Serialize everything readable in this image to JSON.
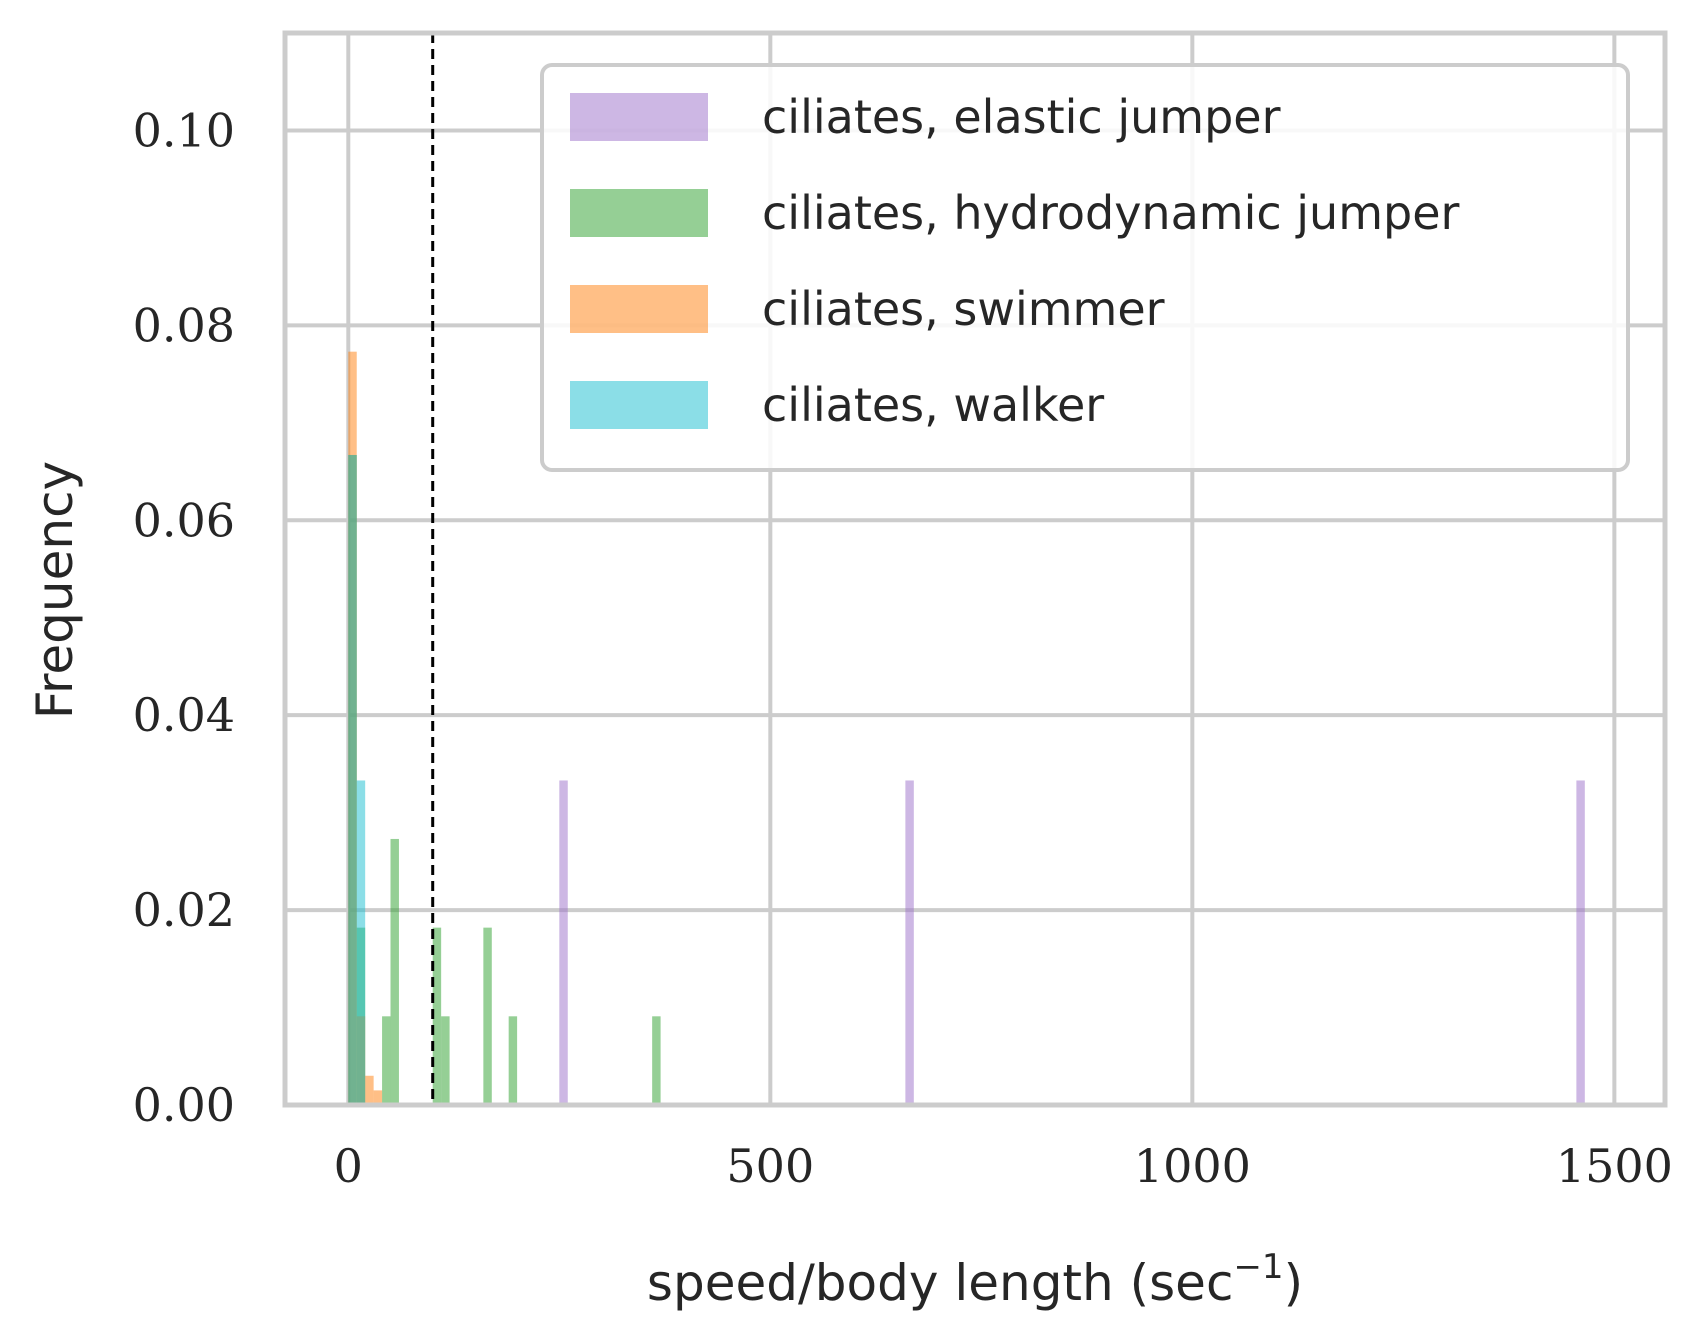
{
  "chart_data": {
    "type": "bar",
    "subtype": "histogram",
    "xlabel_main": "speed/body length (sec",
    "xlabel_sup": "−1",
    "xlabel_close": ")",
    "ylabel": "Frequency",
    "xlim": [
      -75,
      1560
    ],
    "ylim": [
      0,
      0.11
    ],
    "x_ticks": [
      0,
      500,
      1000,
      1500
    ],
    "x_tick_labels": [
      "0",
      "500",
      "1000",
      "1500"
    ],
    "y_ticks": [
      0.0,
      0.02,
      0.04,
      0.06,
      0.08,
      0.1
    ],
    "y_tick_labels": [
      "0.00",
      "0.02",
      "0.04",
      "0.06",
      "0.08",
      "0.10"
    ],
    "grid": true,
    "legend_position": "upper-right",
    "reference_line": {
      "x": 100,
      "style": "dashed",
      "color": "#000000"
    },
    "series": [
      {
        "name": "ciliates, elastic jumper",
        "color": "#9b6fc9",
        "opacity": 0.5,
        "bins": [
          {
            "x0": 250,
            "x1": 260,
            "value": 0.0333
          },
          {
            "x0": 660,
            "x1": 670,
            "value": 0.0333
          },
          {
            "x0": 1455,
            "x1": 1465,
            "value": 0.0333
          }
        ]
      },
      {
        "name": "ciliates, hydrodynamic jumper",
        "color": "#2ca02c",
        "opacity": 0.5,
        "bins": [
          {
            "x0": 0,
            "x1": 10,
            "value": 0.0667
          },
          {
            "x0": 10,
            "x1": 20,
            "value": 0.0182
          },
          {
            "x0": 40,
            "x1": 50,
            "value": 0.0091
          },
          {
            "x0": 50,
            "x1": 60,
            "value": 0.0273
          },
          {
            "x0": 100,
            "x1": 110,
            "value": 0.0182
          },
          {
            "x0": 110,
            "x1": 120,
            "value": 0.0091
          },
          {
            "x0": 160,
            "x1": 170,
            "value": 0.0182
          },
          {
            "x0": 190,
            "x1": 200,
            "value": 0.0091
          },
          {
            "x0": 360,
            "x1": 370,
            "value": 0.0091
          }
        ]
      },
      {
        "name": "ciliates, swimmer",
        "color": "#ff7f0e",
        "opacity": 0.5,
        "bins": [
          {
            "x0": 0,
            "x1": 10,
            "value": 0.0773
          },
          {
            "x0": 10,
            "x1": 20,
            "value": 0.0091
          },
          {
            "x0": 20,
            "x1": 30,
            "value": 0.003
          },
          {
            "x0": 30,
            "x1": 40,
            "value": 0.0015
          }
        ]
      },
      {
        "name": "ciliates, walker",
        "color": "#17becf",
        "opacity": 0.5,
        "bins": [
          {
            "x0": 0,
            "x1": 10,
            "value": 0.0667
          },
          {
            "x0": 10,
            "x1": 20,
            "value": 0.0333
          }
        ]
      }
    ]
  }
}
